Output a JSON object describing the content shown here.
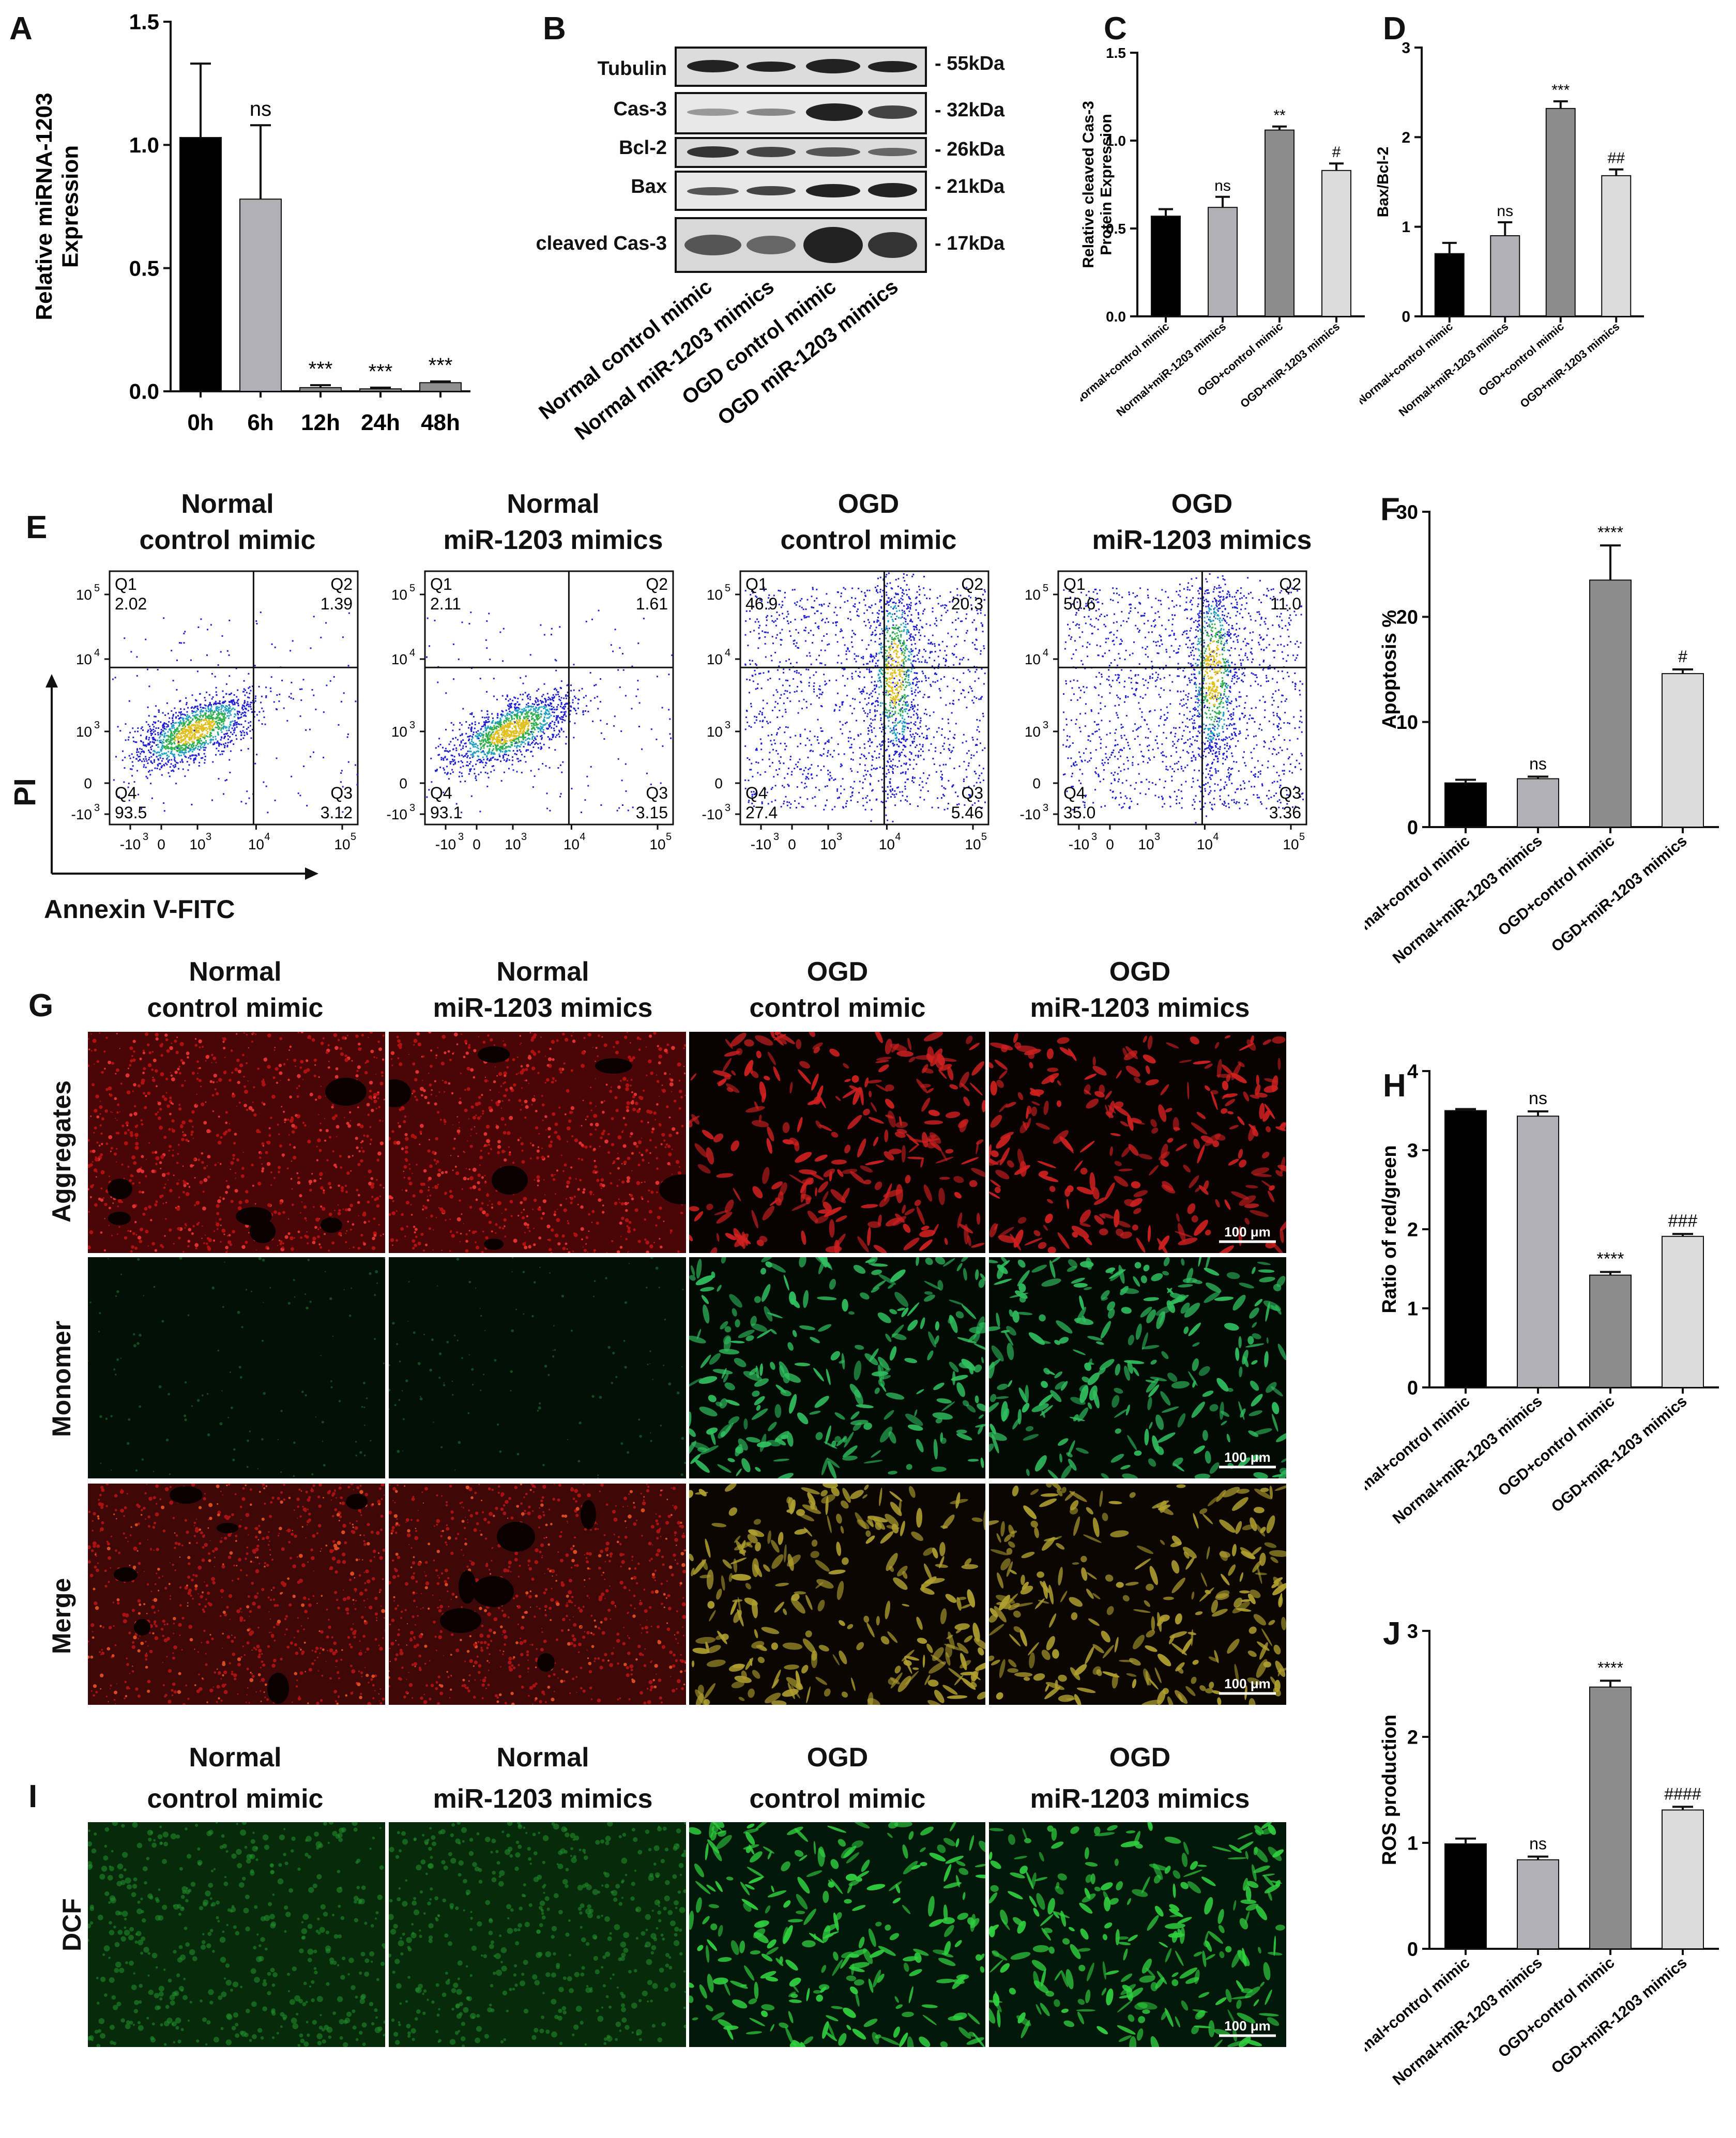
{
  "panels": {
    "A": {
      "label": "A"
    },
    "B": {
      "label": "B"
    },
    "C": {
      "label": "C"
    },
    "D": {
      "label": "D"
    },
    "E": {
      "label": "E"
    },
    "F": {
      "label": "F"
    },
    "G": {
      "label": "G"
    },
    "H": {
      "label": "H"
    },
    "I": {
      "label": "I"
    },
    "J": {
      "label": "J"
    }
  },
  "groups": {
    "g1": {
      "l1": "Normal",
      "l2": "control mimic"
    },
    "g2": {
      "l1": "Normal",
      "l2": "miR-1203 mimics"
    },
    "g3": {
      "l1": "OGD",
      "l2": "control mimic"
    },
    "g4": {
      "l1": "OGD",
      "l2": "miR-1203 mimics"
    }
  },
  "blot": {
    "rows": [
      {
        "name": "Tubulin",
        "kda": "- 55kDa"
      },
      {
        "name": "Cas-3",
        "kda": "- 32kDa"
      },
      {
        "name": "Bcl-2",
        "kda": "- 26kDa"
      },
      {
        "name": "Bax",
        "kda": "- 21kDa"
      },
      {
        "name": "cleaved Cas-3",
        "kda": "- 17kDa"
      }
    ],
    "lanes": [
      "Normal control mimic",
      "Normal miR-1203 mimics",
      "OGD control mimic",
      "OGD miR-1203 mimics"
    ]
  },
  "flow": {
    "xlabel": "Annexin V-FITC",
    "ylabel": "PI",
    "quadrant_names": [
      "Q1",
      "Q2",
      "Q3",
      "Q4"
    ],
    "y_ticks": [
      "10",
      "10",
      "10",
      "0",
      "-10"
    ],
    "y_exps": [
      "5",
      "4",
      "3",
      "",
      "3"
    ],
    "x_ticks": [
      "-10",
      "0",
      "10",
      "10",
      "10"
    ],
    "x_exps": [
      "3",
      "",
      "3",
      "4",
      "5"
    ],
    "plots": [
      {
        "q1": "2.02",
        "q2": "1.39",
        "q3": "3.12",
        "q4": "93.5"
      },
      {
        "q1": "2.11",
        "q2": "1.61",
        "q3": "3.15",
        "q4": "93.1"
      },
      {
        "q1": "46.9",
        "q2": "20.3",
        "q3": "5.46",
        "q4": "27.4"
      },
      {
        "q1": "50.6",
        "q2": "11.0",
        "q3": "3.36",
        "q4": "35.0"
      }
    ]
  },
  "micro": {
    "rows_G": [
      "Aggregates",
      "Monomer",
      "Merge"
    ],
    "row_I": "DCF",
    "scale": "100 μm"
  },
  "chart_data": [
    {
      "id": "A",
      "type": "bar",
      "ylabel": "Relative miRNA-1203 Expression",
      "ylabel_lines": [
        "Relative miRNA-1203",
        "Expression"
      ],
      "categories": [
        "0h",
        "6h",
        "12h",
        "24h",
        "48h"
      ],
      "values": [
        1.03,
        0.78,
        0.015,
        0.01,
        0.035
      ],
      "errors": [
        0.3,
        0.3,
        0.01,
        0.005,
        0.005
      ],
      "annotations": [
        "",
        "ns",
        "***",
        "***",
        "***"
      ],
      "ylim": [
        0,
        1.5
      ],
      "yticks": [
        0.0,
        0.5,
        1.0,
        1.5
      ],
      "colors": [
        "#000000",
        "#b0b0b6",
        "#8f8f8f",
        "#8f8f8f",
        "#8f8f8f"
      ]
    },
    {
      "id": "C",
      "type": "bar",
      "ylabel": "Relative cleaved Cas-3 Protein Expression",
      "ylabel_lines": [
        "Relative cleaved Cas-3",
        "Protein Expression"
      ],
      "categories": [
        "Normal+control mimic",
        "Normal+miR-1203 mimics",
        "OGD+control mimic",
        "OGD+miR-1203 mimics"
      ],
      "values": [
        0.57,
        0.62,
        1.06,
        0.83
      ],
      "errors": [
        0.04,
        0.06,
        0.02,
        0.04
      ],
      "annotations": [
        "",
        "ns",
        "**",
        "#"
      ],
      "ylim": [
        0,
        1.5
      ],
      "yticks": [
        0.0,
        0.5,
        1.0,
        1.5
      ],
      "colors": [
        "#000000",
        "#b0b0b6",
        "#8c8c8c",
        "#dcdcdc"
      ]
    },
    {
      "id": "D",
      "type": "bar",
      "ylabel": "Bax/Bcl-2",
      "ylabel_lines": [
        "Bax/Bcl-2"
      ],
      "categories": [
        "Normal+control mimic",
        "Normal+miR-1203 mimics",
        "OGD+control mimic",
        "OGD+miR-1203 mimics"
      ],
      "values": [
        0.7,
        0.9,
        2.32,
        1.57
      ],
      "errors": [
        0.12,
        0.15,
        0.08,
        0.07
      ],
      "annotations": [
        "",
        "ns",
        "***",
        "##"
      ],
      "ylim": [
        0,
        3
      ],
      "yticks": [
        0,
        1,
        2,
        3
      ],
      "colors": [
        "#000000",
        "#b0b0b6",
        "#8c8c8c",
        "#dcdcdc"
      ]
    },
    {
      "id": "F",
      "type": "bar",
      "ylabel": "Apoptosis %",
      "ylabel_lines": [
        "Apoptosis %"
      ],
      "categories": [
        "Normal+control mimic",
        "Normal+miR-1203 mimics",
        "OGD+control mimic",
        "OGD+miR-1203 mimics"
      ],
      "values": [
        4.2,
        4.6,
        23.5,
        14.6
      ],
      "errors": [
        0.3,
        0.2,
        3.3,
        0.4
      ],
      "annotations": [
        "",
        "ns",
        "****",
        "#"
      ],
      "ylim": [
        0,
        30
      ],
      "yticks": [
        0,
        10,
        20,
        30
      ],
      "colors": [
        "#000000",
        "#b0b0b6",
        "#8c8c8c",
        "#dcdcdc"
      ]
    },
    {
      "id": "H",
      "type": "bar",
      "ylabel": "Ratio of red/green",
      "ylabel_lines": [
        "Ratio of red/green"
      ],
      "categories": [
        "Normal+control mimic",
        "Normal+miR-1203 mimics",
        "OGD+control mimic",
        "OGD+miR-1203 mimics"
      ],
      "values": [
        3.5,
        3.43,
        1.42,
        1.91
      ],
      "errors": [
        0.02,
        0.06,
        0.04,
        0.03
      ],
      "annotations": [
        "",
        "ns",
        "****",
        "###"
      ],
      "ylim": [
        0,
        4
      ],
      "yticks": [
        0,
        1,
        2,
        3,
        4
      ],
      "colors": [
        "#000000",
        "#b0b0b6",
        "#8c8c8c",
        "#dcdcdc"
      ]
    },
    {
      "id": "J",
      "type": "bar",
      "ylabel": "ROS production",
      "ylabel_lines": [
        "ROS production"
      ],
      "categories": [
        "Normal+control mimic",
        "Normal+miR-1203 mimics",
        "OGD+control mimic",
        "OGD+miR-1203 mimics"
      ],
      "values": [
        0.99,
        0.84,
        2.47,
        1.31
      ],
      "errors": [
        0.05,
        0.03,
        0.06,
        0.03
      ],
      "annotations": [
        "",
        "ns",
        "****",
        "####"
      ],
      "ylim": [
        0,
        3
      ],
      "yticks": [
        0,
        1,
        2,
        3
      ],
      "colors": [
        "#000000",
        "#b0b0b6",
        "#8c8c8c",
        "#dcdcdc"
      ]
    }
  ]
}
